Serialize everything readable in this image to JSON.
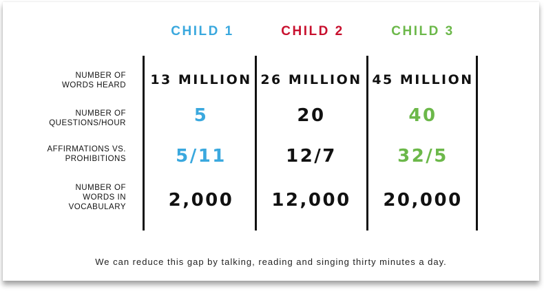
{
  "colors": {
    "child1": "#3aa8de",
    "child2": "#c8102e",
    "child3": "#6cb84a",
    "text": "#111111"
  },
  "headers": [
    "CHILD 1",
    "CHILD 2",
    "CHILD 3"
  ],
  "rows": [
    {
      "label_lines": [
        "NUMBER OF",
        "WORDS HEARD"
      ],
      "values": [
        "13 MILLION",
        "26 MILLION",
        "45 MILLION"
      ]
    },
    {
      "label_lines": [
        "NUMBER OF",
        "QUESTIONS/HOUR"
      ],
      "values": [
        "5",
        "20",
        "40"
      ]
    },
    {
      "label_lines": [
        "AFFIRMATIONS VS.",
        "PROHIBITIONS"
      ],
      "values": [
        "5/11",
        "12/7",
        "32/5"
      ]
    },
    {
      "label_lines": [
        "NUMBER OF",
        "WORDS IN",
        "VOCABULARY"
      ],
      "values": [
        "2,000",
        "12,000",
        "20,000"
      ]
    }
  ],
  "footer": "We can reduce this gap by talking, reading and singing thirty minutes a day."
}
